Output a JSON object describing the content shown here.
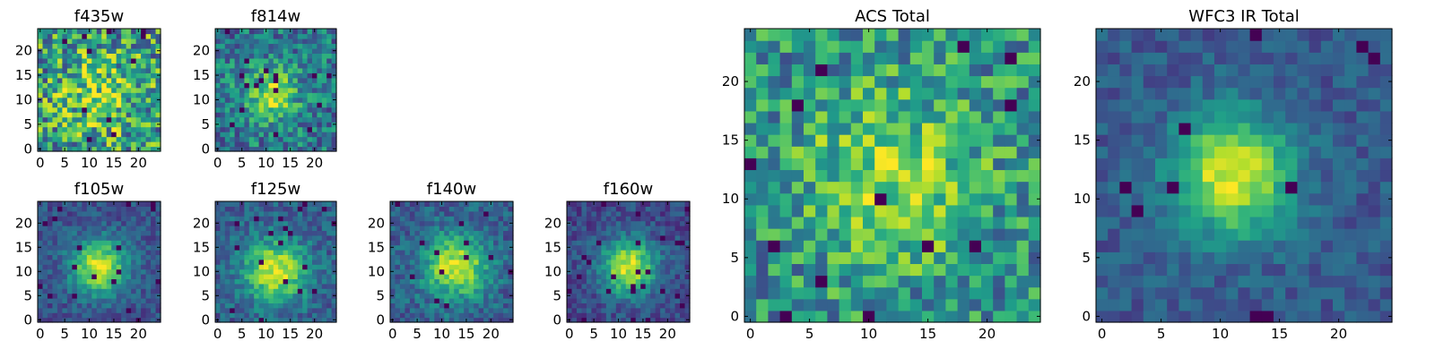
{
  "chart_data": [
    {
      "type": "heatmap",
      "title": "f435w",
      "colormap": "viridis",
      "grid_size": 25,
      "xlim": [
        0,
        24
      ],
      "ylim": [
        0,
        24
      ],
      "xticks": [
        0,
        5,
        10,
        15,
        20
      ],
      "yticks": [
        0,
        5,
        10,
        15,
        20
      ],
      "pattern": {
        "noise": 0.75,
        "peak": 0.25,
        "sigma": 5,
        "center": [
          12,
          11
        ],
        "base": 0.55,
        "seed": 11
      }
    },
    {
      "type": "heatmap",
      "title": "f814w",
      "colormap": "viridis",
      "grid_size": 25,
      "xlim": [
        0,
        24
      ],
      "ylim": [
        0,
        24
      ],
      "xticks": [
        0,
        5,
        10,
        15,
        20
      ],
      "yticks": [
        0,
        5,
        10,
        15,
        20
      ],
      "pattern": {
        "noise": 0.5,
        "peak": 0.45,
        "sigma": 4,
        "center": [
          11,
          11
        ],
        "base": 0.4,
        "seed": 23
      }
    },
    {
      "type": "heatmap",
      "title": "f105w",
      "colormap": "viridis",
      "grid_size": 25,
      "xlim": [
        0,
        24
      ],
      "ylim": [
        0,
        24
      ],
      "xticks": [
        0,
        5,
        10,
        15,
        20
      ],
      "yticks": [
        0,
        5,
        10,
        15,
        20
      ],
      "pattern": {
        "noise": 0.25,
        "peak": 0.7,
        "sigma": 4,
        "center": [
          12,
          11
        ],
        "base": 0.25,
        "seed": 37
      }
    },
    {
      "type": "heatmap",
      "title": "f125w",
      "colormap": "viridis",
      "grid_size": 25,
      "xlim": [
        0,
        24
      ],
      "ylim": [
        0,
        24
      ],
      "xticks": [
        0,
        5,
        10,
        15,
        20
      ],
      "yticks": [
        0,
        5,
        10,
        15,
        20
      ],
      "pattern": {
        "noise": 0.3,
        "peak": 0.65,
        "sigma": 4.5,
        "center": [
          12,
          10
        ],
        "base": 0.3,
        "seed": 41
      }
    },
    {
      "type": "heatmap",
      "title": "f140w",
      "colormap": "viridis",
      "grid_size": 25,
      "xlim": [
        0,
        24
      ],
      "ylim": [
        0,
        24
      ],
      "xticks": [
        0,
        5,
        10,
        15,
        20
      ],
      "yticks": [
        0,
        5,
        10,
        15,
        20
      ],
      "pattern": {
        "noise": 0.3,
        "peak": 0.65,
        "sigma": 4.5,
        "center": [
          13,
          11
        ],
        "base": 0.3,
        "seed": 53
      }
    },
    {
      "type": "heatmap",
      "title": "f160w",
      "colormap": "viridis",
      "grid_size": 25,
      "xlim": [
        0,
        24
      ],
      "ylim": [
        0,
        24
      ],
      "xticks": [
        0,
        5,
        10,
        15,
        20
      ],
      "yticks": [
        0,
        5,
        10,
        15,
        20
      ],
      "pattern": {
        "noise": 0.25,
        "peak": 0.72,
        "sigma": 4,
        "center": [
          12,
          11
        ],
        "base": 0.22,
        "seed": 67
      }
    },
    {
      "type": "heatmap",
      "title": "ACS Total",
      "colormap": "viridis",
      "grid_size": 25,
      "xlim": [
        0,
        24
      ],
      "ylim": [
        0,
        24
      ],
      "xticks": [
        0,
        5,
        10,
        15,
        20
      ],
      "yticks": [
        0,
        5,
        10,
        15,
        20
      ],
      "pattern": {
        "noise": 0.55,
        "peak": 0.35,
        "sigma": 5,
        "center": [
          12,
          12
        ],
        "base": 0.5,
        "seed": 79
      }
    },
    {
      "type": "heatmap",
      "title": "WFC3 IR Total",
      "colormap": "viridis",
      "grid_size": 25,
      "xlim": [
        0,
        24
      ],
      "ylim": [
        0,
        24
      ],
      "xticks": [
        0,
        5,
        10,
        15,
        20
      ],
      "yticks": [
        0,
        5,
        10,
        15,
        20
      ],
      "pattern": {
        "noise": 0.22,
        "peak": 0.7,
        "sigma": 3.5,
        "center": [
          11,
          12
        ],
        "base": 0.28,
        "seed": 97
      }
    }
  ]
}
